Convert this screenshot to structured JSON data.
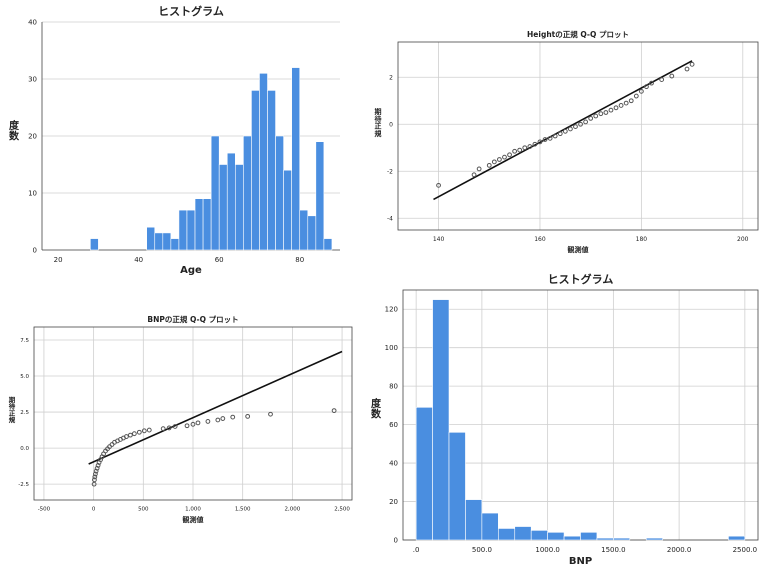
{
  "colors": {
    "bar": "#4a8ee0",
    "bar_edge": "#ffffff",
    "grid": "#cfcfcf",
    "axis": "#444444",
    "line": "#111111",
    "point": "#555555"
  },
  "chart_data": [
    {
      "id": "age-hist",
      "type": "bar",
      "title": "ヒストグラム",
      "xlabel": "Age",
      "ylabel": "度数",
      "xlim": [
        16,
        90
      ],
      "ylim": [
        0,
        40
      ],
      "xticks": [
        20,
        40,
        60,
        80
      ],
      "yticks": [
        0,
        10,
        20,
        30,
        40
      ],
      "bin_width": 2,
      "bins": [
        {
          "x": 29,
          "count": 2
        },
        {
          "x": 43,
          "count": 4
        },
        {
          "x": 45,
          "count": 3
        },
        {
          "x": 47,
          "count": 3
        },
        {
          "x": 49,
          "count": 2
        },
        {
          "x": 51,
          "count": 7
        },
        {
          "x": 53,
          "count": 7
        },
        {
          "x": 55,
          "count": 9
        },
        {
          "x": 57,
          "count": 9
        },
        {
          "x": 59,
          "count": 20
        },
        {
          "x": 61,
          "count": 15
        },
        {
          "x": 63,
          "count": 17
        },
        {
          "x": 65,
          "count": 15
        },
        {
          "x": 67,
          "count": 20
        },
        {
          "x": 69,
          "count": 28
        },
        {
          "x": 71,
          "count": 31
        },
        {
          "x": 73,
          "count": 28
        },
        {
          "x": 75,
          "count": 20
        },
        {
          "x": 77,
          "count": 14
        },
        {
          "x": 79,
          "count": 32
        },
        {
          "x": 81,
          "count": 7
        },
        {
          "x": 83,
          "count": 6
        },
        {
          "x": 85,
          "count": 19
        },
        {
          "x": 87,
          "count": 2
        }
      ]
    },
    {
      "id": "height-qq",
      "type": "scatter",
      "title": "Heightの正規 Q-Q プロット",
      "xlabel": "観測値",
      "ylabel": "期待正規",
      "xlim": [
        132,
        203
      ],
      "ylim": [
        -4.5,
        3.5
      ],
      "xticks": [
        140,
        160,
        180,
        200
      ],
      "yticks": [
        -4,
        -2,
        0,
        2
      ],
      "line": {
        "x1": 139,
        "y1": -3.2,
        "x2": 190,
        "y2": 2.7
      },
      "points": [
        [
          140,
          -2.6
        ],
        [
          147,
          -2.15
        ],
        [
          148,
          -1.9
        ],
        [
          150,
          -1.75
        ],
        [
          151,
          -1.6
        ],
        [
          152,
          -1.5
        ],
        [
          153,
          -1.4
        ],
        [
          154,
          -1.3
        ],
        [
          155,
          -1.15
        ],
        [
          156,
          -1.1
        ],
        [
          157,
          -1.0
        ],
        [
          158,
          -0.95
        ],
        [
          159,
          -0.85
        ],
        [
          160,
          -0.75
        ],
        [
          161,
          -0.65
        ],
        [
          162,
          -0.6
        ],
        [
          163,
          -0.5
        ],
        [
          164,
          -0.4
        ],
        [
          165,
          -0.3
        ],
        [
          166,
          -0.2
        ],
        [
          167,
          -0.1
        ],
        [
          168,
          0.0
        ],
        [
          169,
          0.1
        ],
        [
          170,
          0.25
        ],
        [
          171,
          0.35
        ],
        [
          172,
          0.45
        ],
        [
          173,
          0.5
        ],
        [
          174,
          0.6
        ],
        [
          175,
          0.7
        ],
        [
          176,
          0.8
        ],
        [
          177,
          0.9
        ],
        [
          178,
          1.0
        ],
        [
          179,
          1.2
        ],
        [
          180,
          1.4
        ],
        [
          181,
          1.6
        ],
        [
          182,
          1.75
        ],
        [
          184,
          1.9
        ],
        [
          186,
          2.05
        ],
        [
          189,
          2.35
        ],
        [
          190,
          2.55
        ]
      ]
    },
    {
      "id": "bnp-qq",
      "type": "scatter",
      "title": "BNPの正規 Q-Q プロット",
      "xlabel": "観測値",
      "ylabel": "期待正規",
      "xlim": [
        -600,
        2600
      ],
      "ylim": [
        -3.6,
        8.4
      ],
      "xticks": [
        -500,
        0,
        500,
        1000,
        1500,
        2000,
        2500
      ],
      "xtick_labels": [
        "-500",
        "0",
        "500",
        "1,000",
        "1,500",
        "2,000",
        "2,500"
      ],
      "yticks": [
        -2.5,
        0.0,
        2.5,
        5.0,
        7.5
      ],
      "ytick_labels": [
        "-2.5",
        "0.0",
        "2.5",
        "5.0",
        "7.5"
      ],
      "line": {
        "x1": -50,
        "y1": -1.1,
        "x2": 2500,
        "y2": 6.7
      },
      "points": [
        [
          5,
          -2.5
        ],
        [
          8,
          -2.2
        ],
        [
          12,
          -2.0
        ],
        [
          18,
          -1.8
        ],
        [
          25,
          -1.6
        ],
        [
          35,
          -1.4
        ],
        [
          45,
          -1.2
        ],
        [
          55,
          -1.0
        ],
        [
          70,
          -0.8
        ],
        [
          85,
          -0.6
        ],
        [
          100,
          -0.4
        ],
        [
          120,
          -0.2
        ],
        [
          140,
          -0.05
        ],
        [
          160,
          0.1
        ],
        [
          185,
          0.25
        ],
        [
          210,
          0.4
        ],
        [
          240,
          0.5
        ],
        [
          270,
          0.6
        ],
        [
          300,
          0.7
        ],
        [
          330,
          0.8
        ],
        [
          370,
          0.9
        ],
        [
          410,
          1.0
        ],
        [
          460,
          1.1
        ],
        [
          510,
          1.2
        ],
        [
          560,
          1.25
        ],
        [
          700,
          1.35
        ],
        [
          760,
          1.4
        ],
        [
          820,
          1.5
        ],
        [
          940,
          1.55
        ],
        [
          1000,
          1.65
        ],
        [
          1050,
          1.75
        ],
        [
          1150,
          1.85
        ],
        [
          1250,
          1.95
        ],
        [
          1300,
          2.05
        ],
        [
          1400,
          2.15
        ],
        [
          1550,
          2.2
        ],
        [
          1780,
          2.35
        ],
        [
          2420,
          2.6
        ]
      ]
    },
    {
      "id": "bnp-hist",
      "type": "bar",
      "title": "ヒストグラム",
      "xlabel": "BNP",
      "ylabel": "度数",
      "xlim": [
        -100,
        2600
      ],
      "ylim": [
        0,
        130
      ],
      "xticks": [
        0,
        500,
        1000,
        1500,
        2000,
        2500
      ],
      "xtick_labels": [
        ".0",
        "500.0",
        "1000.0",
        "1500.0",
        "2000.0",
        "2500.0"
      ],
      "yticks": [
        0,
        20,
        40,
        60,
        80,
        100,
        120
      ],
      "bin_width": 125,
      "bins": [
        {
          "x": 62.5,
          "count": 69
        },
        {
          "x": 187.5,
          "count": 125
        },
        {
          "x": 312.5,
          "count": 56
        },
        {
          "x": 437.5,
          "count": 21
        },
        {
          "x": 562.5,
          "count": 14
        },
        {
          "x": 687.5,
          "count": 6
        },
        {
          "x": 812.5,
          "count": 7
        },
        {
          "x": 937.5,
          "count": 5
        },
        {
          "x": 1062.5,
          "count": 4
        },
        {
          "x": 1187.5,
          "count": 2
        },
        {
          "x": 1312.5,
          "count": 4
        },
        {
          "x": 1437.5,
          "count": 1
        },
        {
          "x": 1562.5,
          "count": 1
        },
        {
          "x": 1812.5,
          "count": 1
        },
        {
          "x": 2437.5,
          "count": 2
        }
      ]
    }
  ]
}
